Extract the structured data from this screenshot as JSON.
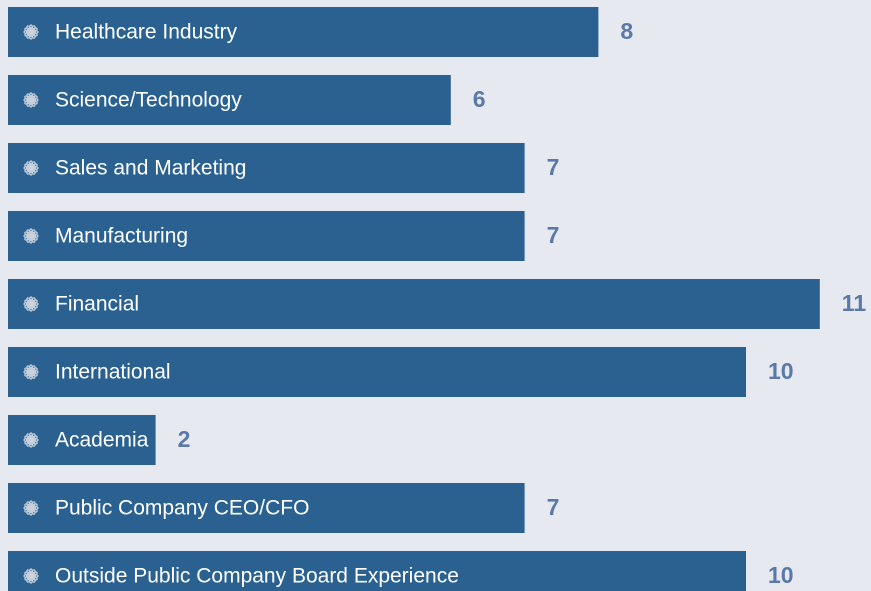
{
  "chart_data": {
    "type": "bar",
    "orientation": "horizontal",
    "categories": [
      "Healthcare Industry",
      "Science/Technology",
      "Sales and Marketing",
      "Manufacturing",
      "Financial",
      "International",
      "Academia",
      "Public Company CEO/CFO",
      "Outside Public Company Board Experience"
    ],
    "values": [
      8,
      6,
      7,
      7,
      11,
      10,
      2,
      7,
      10
    ],
    "color": "#2a6190"
  }
}
